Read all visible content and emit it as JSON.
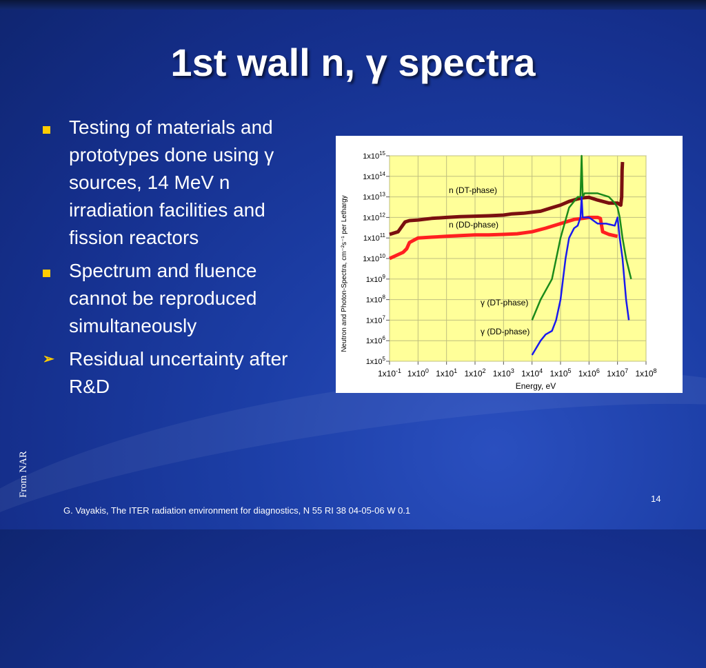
{
  "title": "1st wall n, γ spectra",
  "bullets": [
    {
      "marker": "square",
      "text": "Testing of materials and prototypes done using γ sources, 14 MeV n irradiation facilities and fission reactors"
    },
    {
      "marker": "square",
      "text": "Spectrum and fluence cannot be reproduced simultaneously"
    },
    {
      "marker": "chevron",
      "chevron_glyph": "➢",
      "text": "Residual uncertainty after R&D"
    }
  ],
  "side_credit": "From NAR",
  "page_number": "14",
  "footer": "G. Vayakis, The ITER radiation environment for diagnostics, N 55 RI 38 04-05-06 W 0.1",
  "colors": {
    "background": "#1c3ea6",
    "bullet_marker": "#ffcc00",
    "plot_area": "#ffff99",
    "gridlines": "#bfbf7f"
  },
  "chart_data": {
    "type": "line",
    "xlabel": "Energy, eV",
    "ylabel": "Neutron and Photon-Spectra, cm⁻²s⁻¹ per Lethargy",
    "xscale": "log",
    "yscale": "log",
    "xlim": [
      0.1,
      100000000
    ],
    "ylim": [
      100000,
      1000000000000000
    ],
    "grid": true,
    "xticks": [
      {
        "b": "1x10",
        "e": "-1"
      },
      {
        "b": "1x10",
        "e": "0"
      },
      {
        "b": "1x10",
        "e": "1"
      },
      {
        "b": "1x10",
        "e": "2"
      },
      {
        "b": "1x10",
        "e": "3"
      },
      {
        "b": "1x10",
        "e": "4"
      },
      {
        "b": "1x10",
        "e": "5"
      },
      {
        "b": "1x10",
        "e": "6"
      },
      {
        "b": "1x10",
        "e": "7"
      },
      {
        "b": "1x10",
        "e": "8"
      }
    ],
    "yticks": [
      {
        "b": "1x10",
        "e": "5"
      },
      {
        "b": "1x10",
        "e": "6"
      },
      {
        "b": "1x10",
        "e": "7"
      },
      {
        "b": "1x10",
        "e": "8"
      },
      {
        "b": "1x10",
        "e": "9"
      },
      {
        "b": "1x10",
        "e": "10"
      },
      {
        "b": "1x10",
        "e": "11"
      },
      {
        "b": "1x10",
        "e": "12"
      },
      {
        "b": "1x10",
        "e": "13"
      },
      {
        "b": "1x10",
        "e": "14"
      },
      {
        "b": "1x10",
        "e": "15"
      }
    ],
    "annotations": [
      "n (DT-phase)",
      "n (DD-phase)",
      "γ (DT-phase)",
      "γ (DD-phase)"
    ],
    "series": [
      {
        "name": "n (DT-phase)",
        "color": "#7a1010",
        "width": 5,
        "x": [
          0.1,
          0.2,
          0.35,
          0.5,
          1,
          3,
          10,
          30,
          100,
          300,
          1000,
          2000,
          5000,
          20000,
          50000,
          100000,
          200000,
          400000,
          600000,
          1000000,
          2000000,
          5000000,
          10000000,
          13000000,
          14000000,
          14500000,
          15000000
        ],
        "y": [
          150000000000,
          200000000000,
          600000000000,
          700000000000,
          750000000000,
          900000000000,
          1000000000000,
          1100000000000,
          1150000000000,
          1200000000000,
          1300000000000,
          1500000000000,
          1600000000000,
          2000000000000,
          3000000000000,
          4000000000000,
          6000000000000,
          8000000000000,
          9000000000000,
          9500000000000,
          7000000000000,
          5000000000000,
          5000000000000,
          4000000000000,
          10000000000000,
          200000000000000,
          500000000000000
        ]
      },
      {
        "name": "n (DD-phase)",
        "color": "#ff2020",
        "width": 5,
        "x": [
          0.1,
          0.3,
          0.4,
          0.5,
          1,
          3,
          10,
          30,
          100,
          300,
          1000,
          3000,
          10000,
          30000,
          100000,
          300000,
          600000,
          1000000,
          1500000,
          2000000,
          2500000,
          3000000,
          5000000,
          10000000
        ],
        "y": [
          10000000000,
          20000000000,
          30000000000,
          60000000000,
          100000000000,
          110000000000,
          120000000000,
          130000000000,
          140000000000,
          140000000000,
          150000000000,
          160000000000,
          200000000000,
          300000000000,
          500000000000,
          800000000000,
          900000000000,
          1000000000000,
          1000000000000,
          1000000000000,
          900000000000,
          200000000000,
          150000000000,
          120000000000
        ]
      },
      {
        "name": "γ (DT-phase)",
        "color": "#1a8a1a",
        "width": 2.5,
        "x": [
          10000,
          20000,
          50000,
          100000,
          200000,
          400000,
          500000,
          550000,
          600000,
          700000,
          1000000,
          2000000,
          5000000,
          8000000,
          10000000,
          12000000,
          15000000,
          20000000,
          30000000
        ],
        "y": [
          10000000,
          100000000,
          1000000000,
          100000000000,
          3000000000000,
          10000000000000,
          10000000000000,
          1000000000000000,
          10000000000000,
          15000000000000,
          15000000000000,
          15000000000000,
          10000000000000,
          5000000000000,
          3000000000000,
          1000000000000,
          100000000000,
          10000000000,
          1000000000
        ]
      },
      {
        "name": "γ (DD-phase)",
        "color": "#1a1aee",
        "width": 2.5,
        "x": [
          10000,
          20000,
          30000,
          50000,
          70000,
          100000,
          150000,
          200000,
          300000,
          400000,
          500000,
          550000,
          600000,
          1000000,
          2000000,
          4000000,
          8000000,
          10000000,
          12000000,
          15000000,
          20000000,
          25000000
        ],
        "y": [
          200000,
          1000000,
          2000000,
          3000000,
          10000000,
          100000000,
          10000000000,
          100000000000,
          300000000000,
          400000000000,
          1000000000000,
          10000000000000,
          1000000000000,
          1000000000000,
          500000000000,
          500000000000,
          400000000000,
          1000000000000,
          100000000000,
          10000000000,
          100000000,
          10000000
        ]
      }
    ]
  }
}
